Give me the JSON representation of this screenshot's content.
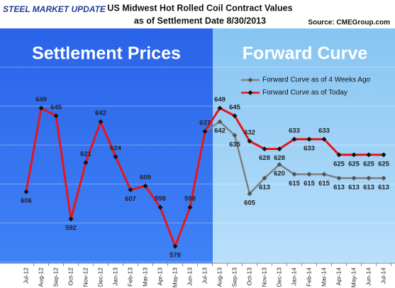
{
  "chart_data": {
    "type": "line",
    "logo": "STEEL MARKET UPDATE",
    "title": "US Midwest Hot Rolled Coil Contract Values",
    "subtitle": "as of Settlement Date 8/30/2013",
    "source": "Source: CMEGroup.com",
    "panels": [
      "Settlement Prices",
      "Forward Curve"
    ],
    "categories": [
      "Jul-12",
      "Aug-12",
      "Sep-12",
      "Oct-12",
      "Nov-12",
      "Dec-12",
      "Jan-13",
      "Feb-13",
      "Mar-13",
      "Apr-13",
      "May-13",
      "Jun-13",
      "Jul-13",
      "Aug-13",
      "Sep-13",
      "Oct-13",
      "Nov-13",
      "Dec-13",
      "Jan-14",
      "Feb-14",
      "Mar-14",
      "Apr-14",
      "May-14",
      "Jun-14",
      "Jul-14"
    ],
    "series": [
      {
        "name": "Forward Curve as of 4 Weeks Ago",
        "color": "#7f7f7f",
        "values": [
          null,
          null,
          null,
          null,
          null,
          null,
          null,
          null,
          null,
          null,
          null,
          null,
          637,
          642,
          635,
          605,
          613,
          620,
          615,
          615,
          615,
          613,
          613,
          613,
          613
        ]
      },
      {
        "name": "Forward Curve as of Today",
        "color": "#e8141b",
        "values": [
          606,
          649,
          645,
          592,
          621,
          642,
          624,
          607,
          609,
          598,
          578,
          598,
          637,
          649,
          645,
          632,
          628,
          628,
          633,
          633,
          633,
          625,
          625,
          625,
          625
        ]
      }
    ],
    "ylim": [
      570,
      690
    ],
    "yticks": [
      570,
      590,
      610,
      630,
      650,
      670,
      690
    ],
    "grid": true,
    "legend": "upper right"
  }
}
